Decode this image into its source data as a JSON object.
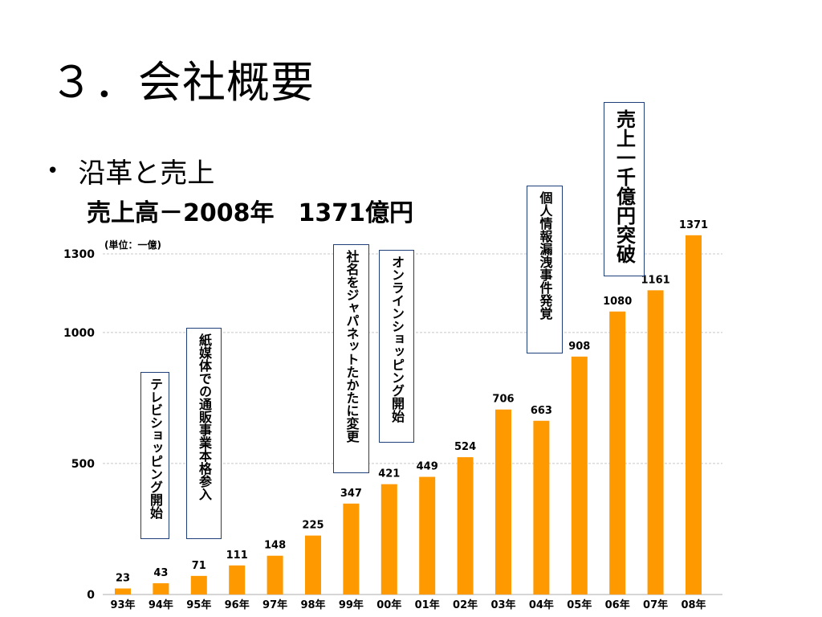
{
  "slide": {
    "title": "３．会社概要",
    "bullet": "沿革と売上",
    "sales_label": "売上高－2008年",
    "sales_value": "1371億円"
  },
  "chart_data": {
    "type": "bar",
    "unit_label": "(単位：一億)",
    "categories": [
      "93年",
      "94年",
      "95年",
      "96年",
      "97年",
      "98年",
      "99年",
      "00年",
      "01年",
      "02年",
      "03年",
      "04年",
      "05年",
      "06年",
      "07年",
      "08年"
    ],
    "values": [
      23,
      43,
      71,
      111,
      148,
      225,
      347,
      421,
      449,
      524,
      706,
      663,
      908,
      1080,
      1161,
      1371
    ],
    "value_labels": [
      "23",
      "43",
      "71",
      "111",
      "148",
      "225",
      "347",
      "421",
      "449",
      "524",
      "706",
      "663",
      "908",
      "1080",
      "1161",
      "1371"
    ],
    "y_ticks": [
      0,
      500,
      1000,
      1300
    ],
    "ylim": [
      0,
      1300
    ],
    "grid": true,
    "bar_color": "#FF9900",
    "annotations": [
      {
        "text": "テレビショッピング開始"
      },
      {
        "text": "紙媒体での通販事業本格参入"
      },
      {
        "text": "社名をジャパネットたかたに変更"
      },
      {
        "text": "オンラインショッピング開始"
      },
      {
        "text": "個人情報漏洩事件発覚"
      },
      {
        "text": "売上一千億円突破"
      }
    ]
  }
}
